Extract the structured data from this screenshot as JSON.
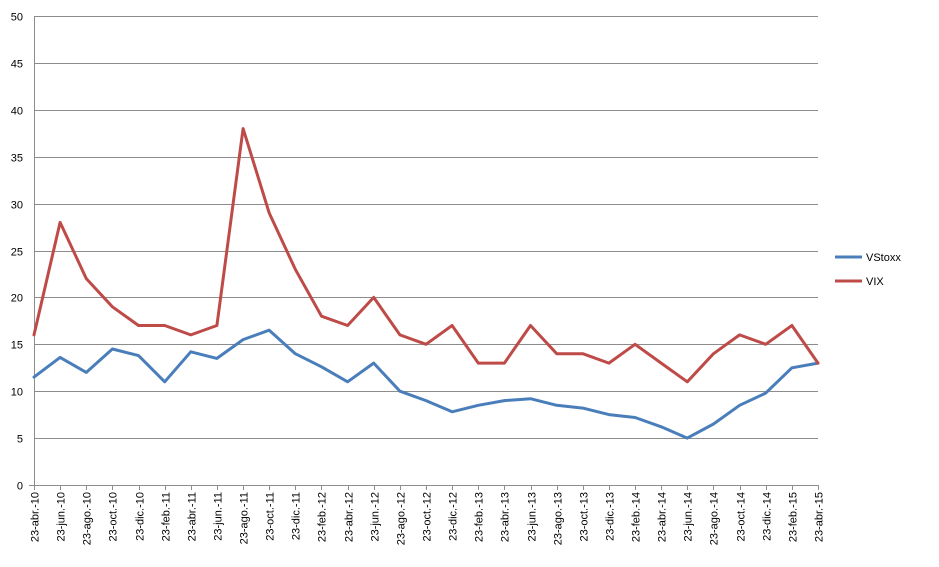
{
  "chart_data": {
    "type": "line",
    "title": "",
    "xlabel": "",
    "ylabel": "",
    "ylim": [
      0,
      50
    ],
    "y_ticks": [
      0,
      5,
      10,
      15,
      20,
      25,
      30,
      35,
      40,
      45,
      50
    ],
    "grid": true,
    "legend_position": "right",
    "categories": [
      "23-abr.-10",
      "23-jun.-10",
      "23-ago.-10",
      "23-oct.-10",
      "23-dic.-10",
      "23-feb.-11",
      "23-abr.-11",
      "23-jun.-11",
      "23-ago.-11",
      "23-oct.-11",
      "23-dic.-11",
      "23-feb.-12",
      "23-abr.-12",
      "23-jun.-12",
      "23-ago.-12",
      "23-oct.-12",
      "23-dic.-12",
      "23-feb.-13",
      "23-abr.-13",
      "23-jun.-13",
      "23-ago.-13",
      "23-oct.-13",
      "23-dic.-13",
      "23-feb.-14",
      "23-abr.-14",
      "23-jun.-14",
      "23-ago.-14",
      "23-oct.-14",
      "23-dic.-14",
      "23-feb.-15",
      "23-abr.-15"
    ],
    "series": [
      {
        "name": "VStoxx",
        "color": "#4a7ebb",
        "values": [
          11.5,
          13.6,
          12.0,
          14.5,
          13.8,
          11.0,
          14.2,
          13.5,
          15.5,
          16.5,
          14.0,
          12.6,
          11.0,
          13.0,
          10.0,
          9.0,
          7.8,
          8.5,
          9.0,
          9.2,
          8.5,
          8.2,
          7.5,
          7.2,
          6.2,
          5.0,
          6.5,
          8.5,
          9.8,
          12.5,
          13.0
        ]
      },
      {
        "name": "VIX",
        "color": "#be4b48",
        "values": [
          16.0,
          28.0,
          22.0,
          19.0,
          17.0,
          17.0,
          16.0,
          17.0,
          38.0,
          29.0,
          23.0,
          18.0,
          17.0,
          20.0,
          16.0,
          15.0,
          17.0,
          13.0,
          13.0,
          17.0,
          14.0,
          14.0,
          13.0,
          15.0,
          13.0,
          11.0,
          14.0,
          16.0,
          15.0,
          17.0,
          13.0
        ]
      }
    ]
  }
}
